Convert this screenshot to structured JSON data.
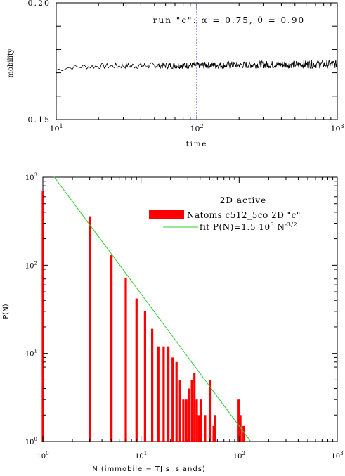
{
  "chart_data": [
    {
      "type": "line",
      "annotation": "run \"c\":   α = 0.75,  θ = 0.90",
      "xlabel": "time",
      "ylabel": "mobility",
      "xscale": "log",
      "xlim": [
        10,
        1000
      ],
      "ylim": [
        0.15,
        0.2
      ],
      "x_ticks": [
        {
          "value": 10,
          "mant": "10",
          "exp": "1"
        },
        {
          "value": 100,
          "mant": "10",
          "exp": "2"
        },
        {
          "value": 1000,
          "mant": "10",
          "exp": "3"
        }
      ],
      "y_ticks": [
        {
          "value": 0.15,
          "label": "0.15"
        },
        {
          "value": 0.2,
          "label": "0.20"
        }
      ],
      "vline_x": 100,
      "colors": {
        "line": "#000000",
        "vline": "#3333cc"
      },
      "series_trend": [
        {
          "x": 10,
          "y": 0.1712
        },
        {
          "x": 12,
          "y": 0.1722
        },
        {
          "x": 15,
          "y": 0.1726
        },
        {
          "x": 20,
          "y": 0.1728
        },
        {
          "x": 30,
          "y": 0.173
        },
        {
          "x": 50,
          "y": 0.1731
        },
        {
          "x": 100,
          "y": 0.1732
        },
        {
          "x": 300,
          "y": 0.1735
        },
        {
          "x": 1000,
          "y": 0.1737
        }
      ]
    },
    {
      "type": "bar",
      "xlabel": "N (immobile = TJ's islands)",
      "ylabel": "P(N)",
      "xscale": "log",
      "yscale": "log",
      "xlim": [
        1,
        1000
      ],
      "ylim": [
        1,
        1000
      ],
      "legend_title": "2D active",
      "legend_position": "top-right",
      "x_ticks": [
        {
          "value": 1,
          "mant": "10",
          "exp": "0"
        },
        {
          "value": 10,
          "mant": "10",
          "exp": "1"
        },
        {
          "value": 100,
          "mant": "10",
          "exp": "2"
        },
        {
          "value": 1000,
          "mant": "10",
          "exp": "3"
        }
      ],
      "y_ticks": [
        {
          "value": 1,
          "mant": "10",
          "exp": "0"
        },
        {
          "value": 10,
          "mant": "10",
          "exp": "1"
        },
        {
          "value": 100,
          "mant": "10",
          "exp": "2"
        },
        {
          "value": 1000,
          "mant": "10",
          "exp": "3"
        }
      ],
      "series": [
        {
          "name": "Natoms c512_5co 2D \"c\"",
          "color": "#ff0000",
          "points": [
            [
              1,
              700
            ],
            [
              3,
              360
            ],
            [
              5,
              130
            ],
            [
              7,
              72
            ],
            [
              9,
              42
            ],
            [
              11,
              30
            ],
            [
              13,
              19
            ],
            [
              15,
              12
            ],
            [
              17,
              12
            ],
            [
              19,
              12
            ],
            [
              21,
              9
            ],
            [
              23,
              8
            ],
            [
              25,
              5
            ],
            [
              27,
              3
            ],
            [
              29,
              3
            ],
            [
              31,
              4
            ],
            [
              33,
              5
            ],
            [
              35,
              6
            ],
            [
              37,
              3
            ],
            [
              39,
              2
            ],
            [
              41,
              3
            ],
            [
              45,
              2
            ],
            [
              51,
              5
            ],
            [
              55,
              1.5
            ],
            [
              57,
              2
            ],
            [
              61,
              1
            ],
            [
              65,
              1
            ],
            [
              71,
              1
            ],
            [
              75,
              1
            ],
            [
              81,
              1
            ],
            [
              99,
              3
            ],
            [
              103,
              2
            ],
            [
              111,
              1.5
            ],
            [
              121,
              1
            ],
            [
              131,
              1
            ],
            [
              141,
              1
            ],
            [
              161,
              1
            ],
            [
              191,
              1
            ],
            [
              251,
              1
            ],
            [
              271,
              1
            ],
            [
              301,
              1
            ],
            [
              361,
              1
            ],
            [
              401,
              1
            ],
            [
              451,
              1
            ],
            [
              601,
              1
            ],
            [
              651,
              1
            ],
            [
              751,
              1
            ],
            [
              901,
              1
            ]
          ]
        },
        {
          "name": "fit P(N)=1.5 10",
          "name_exp": "3",
          "name_tail": " N",
          "name_tail_exp": "-3/2",
          "color": "#33cc33",
          "fit_amplitude": 1500,
          "fit_exponent": -1.5,
          "fit_x_range": [
            1.3,
            130
          ]
        }
      ]
    }
  ]
}
